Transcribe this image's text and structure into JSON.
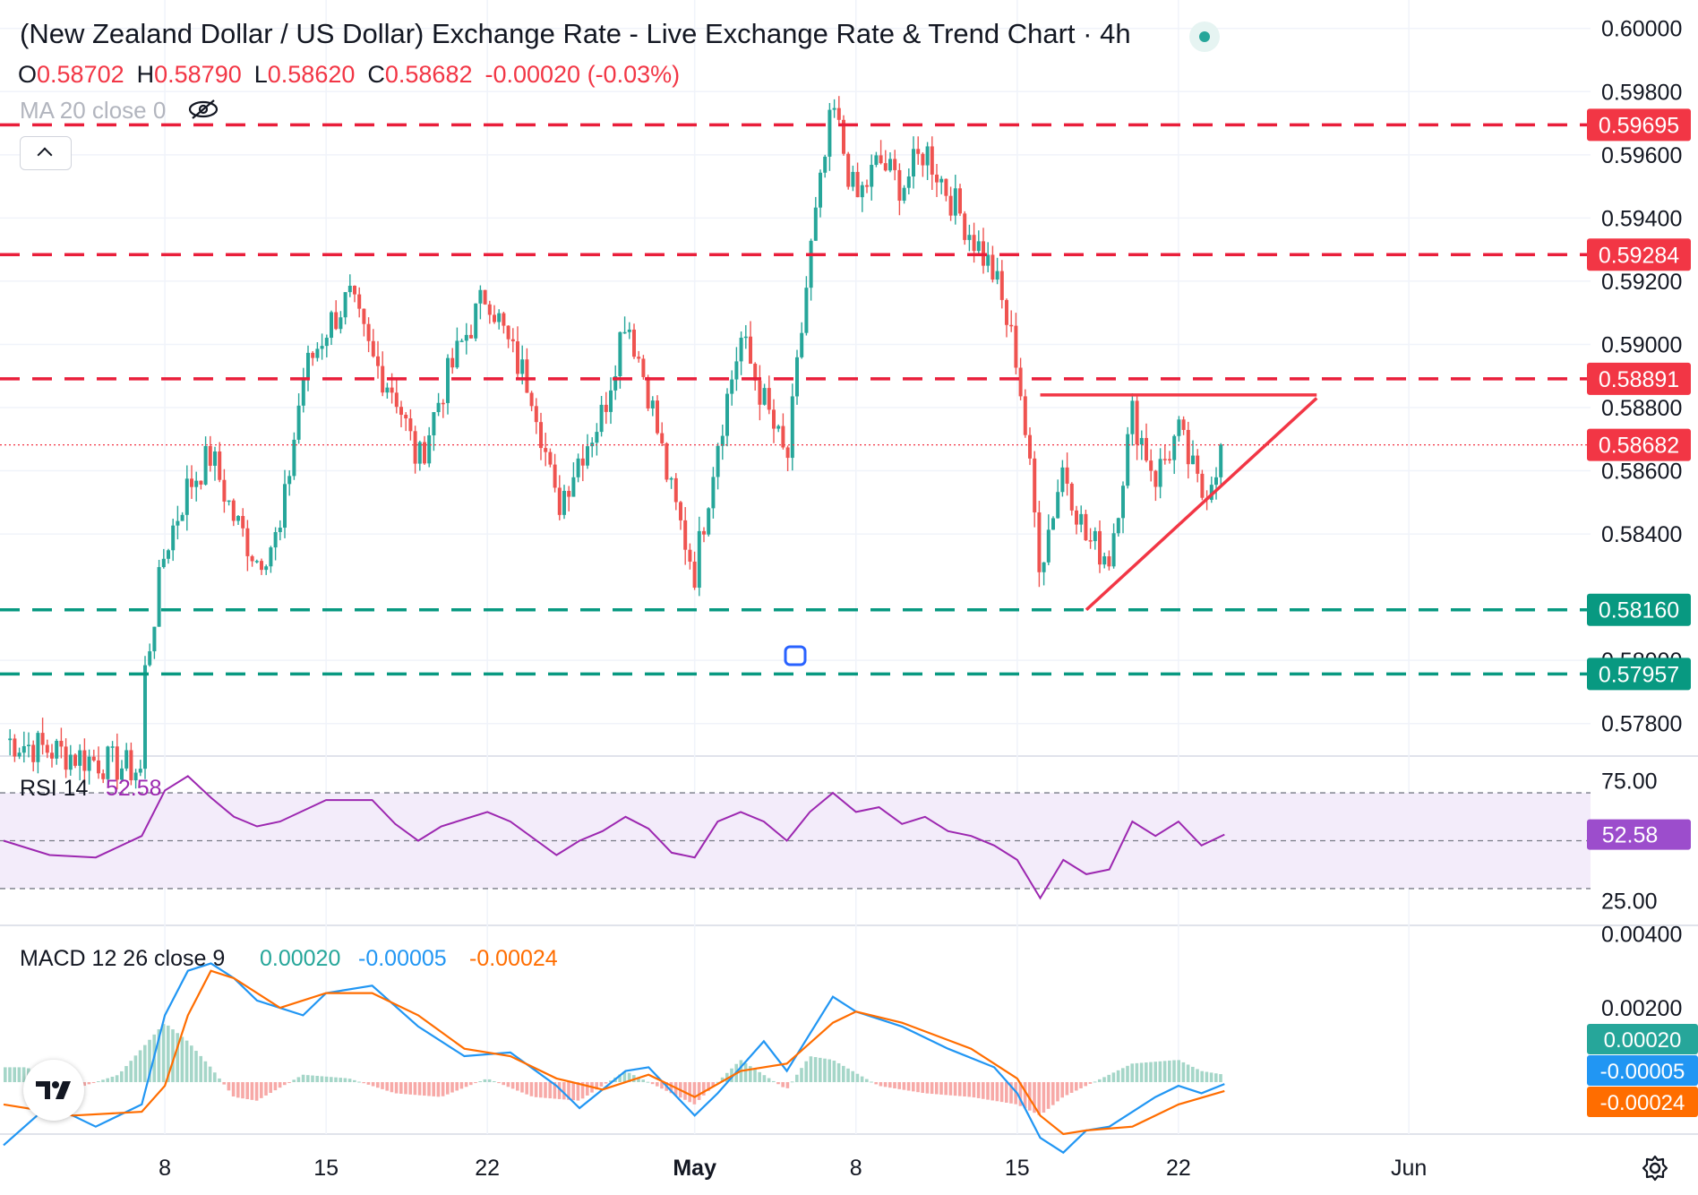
{
  "header": {
    "title": "(New Zealand Dollar / US Dollar) Exchange Rate - Live Exchange Rate & Trend Chart · 4h",
    "ohlc": {
      "o_label": "O",
      "o": "0.58702",
      "h_label": "H",
      "h": "0.58790",
      "l_label": "L",
      "l": "0.58620",
      "c_label": "C",
      "c": "0.58682",
      "change": "-0.00020 (-0.03%)"
    },
    "ma_label": "MA 20 close 0"
  },
  "colors": {
    "up": "#26a69a",
    "down": "#ef5350",
    "resistance": "#e91e3a",
    "support": "#089981",
    "current": "#f23645",
    "rsi": "#9c27b0",
    "rsi_band": "#f3ecfa",
    "macd": "#2196f3",
    "signal": "#ff6d00",
    "grid": "#f0f3fa",
    "text": "#131722"
  },
  "icons": {
    "eye": "eye-crossed-icon",
    "collapse": "chevron-up-icon",
    "logo": "tradingview-logo-icon",
    "settings": "gear-icon"
  },
  "chart_data": [
    {
      "type": "candlestick",
      "title": "(New Zealand Dollar / US Dollar) Exchange Rate - Live Exchange Rate & Trend Chart · 4h",
      "interval": "4h",
      "ylim": [
        0.577,
        0.6009
      ],
      "y_ticks": [
        "0.60000",
        "0.59800",
        "0.59600",
        "0.59400",
        "0.59200",
        "0.59000",
        "0.58800",
        "0.58600",
        "0.58400",
        "0.58000",
        "0.57800"
      ],
      "y_tick_values": [
        0.6,
        0.598,
        0.596,
        0.594,
        0.592,
        0.59,
        0.588,
        0.586,
        0.584,
        0.58,
        0.578
      ],
      "x_ticks": [
        "8",
        "15",
        "22",
        "May",
        "8",
        "15",
        "22",
        "Jun"
      ],
      "x_tick_dates": [
        "2023-04-08",
        "2023-04-15",
        "2023-04-22",
        "2023-05-01",
        "2023-05-08",
        "2023-05-15",
        "2023-05-22",
        "2023-06-01"
      ],
      "x_range": [
        "2023-04-01",
        "2023-06-05"
      ],
      "last": {
        "date": "2023-05-24",
        "open": 0.58702,
        "high": 0.5879,
        "low": 0.5862,
        "close": 0.58682
      },
      "horizontal_levels": [
        {
          "value": 0.59695,
          "label": "0.59695",
          "kind": "resistance"
        },
        {
          "value": 0.59284,
          "label": "0.59284",
          "kind": "resistance"
        },
        {
          "value": 0.58891,
          "label": "0.58891",
          "kind": "resistance"
        },
        {
          "value": 0.5816,
          "label": "0.58160",
          "kind": "support"
        },
        {
          "value": 0.57957,
          "label": "0.57957",
          "kind": "support"
        }
      ],
      "current_price": {
        "value": 0.58682,
        "label": "0.58682"
      },
      "triangle": {
        "top_line": [
          [
            "2023-05-16",
            0.5884
          ],
          [
            "2023-05-28",
            0.5884
          ]
        ],
        "bottom_line": [
          [
            "2023-05-18",
            0.5816
          ],
          [
            "2023-05-28",
            0.5883
          ]
        ]
      },
      "close_path": [
        [
          "2023-04-01",
          0.5775
        ],
        [
          "2023-04-07",
          0.5765
        ],
        [
          "2023-04-07",
          0.579
        ],
        [
          "2023-04-08",
          0.5835
        ],
        [
          "2023-04-09",
          0.5855
        ],
        [
          "2023-04-10",
          0.5865
        ],
        [
          "2023-04-11",
          0.5845
        ],
        [
          "2023-04-12",
          0.5832
        ],
        [
          "2023-04-13",
          0.584
        ],
        [
          "2023-04-14",
          0.589
        ],
        [
          "2023-04-15",
          0.5905
        ],
        [
          "2023-04-16",
          0.5915
        ],
        [
          "2023-04-17",
          0.5895
        ],
        [
          "2023-04-18",
          0.5885
        ],
        [
          "2023-04-19",
          0.5862
        ],
        [
          "2023-04-20",
          0.5885
        ],
        [
          "2023-04-21",
          0.5902
        ],
        [
          "2023-04-22",
          0.5917
        ],
        [
          "2023-04-23",
          0.5898
        ],
        [
          "2023-04-24",
          0.5885
        ],
        [
          "2023-04-25",
          0.5848
        ],
        [
          "2023-04-26",
          0.5865
        ],
        [
          "2023-04-27",
          0.5878
        ],
        [
          "2023-04-28",
          0.591
        ],
        [
          "2023-04-29",
          0.5885
        ],
        [
          "2023-04-30",
          0.5852
        ],
        [
          "2023-05-01",
          0.5828
        ],
        [
          "2023-05-02",
          0.587
        ],
        [
          "2023-05-03",
          0.5902
        ],
        [
          "2023-05-04",
          0.5882
        ],
        [
          "2023-05-05",
          0.5862
        ],
        [
          "2023-05-06",
          0.5928
        ],
        [
          "2023-05-07",
          0.5975
        ],
        [
          "2023-05-08",
          0.5945
        ],
        [
          "2023-05-09",
          0.5958
        ],
        [
          "2023-05-10",
          0.595
        ],
        [
          "2023-05-11",
          0.5962
        ],
        [
          "2023-05-12",
          0.5948
        ],
        [
          "2023-05-13",
          0.5935
        ],
        [
          "2023-05-14",
          0.5922
        ],
        [
          "2023-05-15",
          0.5895
        ],
        [
          "2023-05-16",
          0.583
        ],
        [
          "2023-05-17",
          0.5862
        ],
        [
          "2023-05-18",
          0.5838
        ],
        [
          "2023-05-19",
          0.5833
        ],
        [
          "2023-05-20",
          0.5878
        ],
        [
          "2023-05-21",
          0.5858
        ],
        [
          "2023-05-22",
          0.5872
        ],
        [
          "2023-05-23",
          0.5852
        ],
        [
          "2023-05-24",
          0.58682
        ]
      ]
    },
    {
      "type": "line",
      "title": "RSI",
      "label": "RSI 14",
      "value_label": "52.58",
      "ylim": [
        15,
        85
      ],
      "y_ticks": [
        "75.00",
        "25.00"
      ],
      "y_tick_values": [
        75,
        25
      ],
      "band": [
        30,
        70
      ],
      "series": [
        {
          "name": "RSI 14",
          "points": [
            [
              "2023-04-01",
              50
            ],
            [
              "2023-04-03",
              44
            ],
            [
              "2023-04-05",
              43
            ],
            [
              "2023-04-07",
              52
            ],
            [
              "2023-04-08",
              71
            ],
            [
              "2023-04-09",
              77
            ],
            [
              "2023-04-10",
              68
            ],
            [
              "2023-04-11",
              60
            ],
            [
              "2023-04-12",
              56
            ],
            [
              "2023-04-13",
              58
            ],
            [
              "2023-04-15",
              67
            ],
            [
              "2023-04-17",
              67
            ],
            [
              "2023-04-18",
              57
            ],
            [
              "2023-04-19",
              50
            ],
            [
              "2023-04-20",
              56
            ],
            [
              "2023-04-22",
              62
            ],
            [
              "2023-04-23",
              58
            ],
            [
              "2023-04-25",
              44
            ],
            [
              "2023-04-26",
              50
            ],
            [
              "2023-04-27",
              54
            ],
            [
              "2023-04-28",
              60
            ],
            [
              "2023-04-29",
              55
            ],
            [
              "2023-04-30",
              45
            ],
            [
              "2023-05-01",
              43
            ],
            [
              "2023-05-02",
              58
            ],
            [
              "2023-05-03",
              62
            ],
            [
              "2023-05-04",
              58
            ],
            [
              "2023-05-05",
              50
            ],
            [
              "2023-05-06",
              62
            ],
            [
              "2023-05-07",
              70
            ],
            [
              "2023-05-08",
              62
            ],
            [
              "2023-05-09",
              64
            ],
            [
              "2023-05-10",
              57
            ],
            [
              "2023-05-11",
              60
            ],
            [
              "2023-05-12",
              54
            ],
            [
              "2023-05-13",
              52
            ],
            [
              "2023-05-14",
              48
            ],
            [
              "2023-05-15",
              42
            ],
            [
              "2023-05-16",
              26
            ],
            [
              "2023-05-17",
              42
            ],
            [
              "2023-05-18",
              36
            ],
            [
              "2023-05-19",
              38
            ],
            [
              "2023-05-20",
              58
            ],
            [
              "2023-05-21",
              52
            ],
            [
              "2023-05-22",
              58
            ],
            [
              "2023-05-23",
              48
            ],
            [
              "2023-05-24",
              52.58
            ]
          ]
        }
      ]
    },
    {
      "type": "bar_line",
      "title": "MACD",
      "label": "MACD 12 26 close 9",
      "value_labels": [
        "0.00020",
        "-0.00005",
        "-0.00024"
      ],
      "ylim": [
        -0.0014,
        0.0042
      ],
      "y_ticks": [
        "0.00400",
        "0.00200"
      ],
      "y_tick_values": [
        0.004,
        0.002
      ],
      "series": [
        {
          "name": "MACD",
          "points": [
            [
              "2023-04-01",
              -0.0017
            ],
            [
              "2023-04-03",
              -0.0006
            ],
            [
              "2023-04-05",
              -0.0012
            ],
            [
              "2023-04-07",
              -0.0006
            ],
            [
              "2023-04-08",
              0.0018
            ],
            [
              "2023-04-09",
              0.003
            ],
            [
              "2023-04-10",
              0.0032
            ],
            [
              "2023-04-11",
              0.0028
            ],
            [
              "2023-04-12",
              0.0022
            ],
            [
              "2023-04-14",
              0.0018
            ],
            [
              "2023-04-15",
              0.0024
            ],
            [
              "2023-04-17",
              0.0026
            ],
            [
              "2023-04-19",
              0.0015
            ],
            [
              "2023-04-21",
              0.0007
            ],
            [
              "2023-04-23",
              0.0008
            ],
            [
              "2023-04-25",
              -0.0001
            ],
            [
              "2023-04-26",
              -0.0007
            ],
            [
              "2023-04-28",
              0.0003
            ],
            [
              "2023-04-29",
              0.0004
            ],
            [
              "2023-05-01",
              -0.0009
            ],
            [
              "2023-05-02",
              -0.0003
            ],
            [
              "2023-05-04",
              0.0011
            ],
            [
              "2023-05-05",
              0.0003
            ],
            [
              "2023-05-06",
              0.0013
            ],
            [
              "2023-05-07",
              0.0023
            ],
            [
              "2023-05-08",
              0.0019
            ],
            [
              "2023-05-10",
              0.0015
            ],
            [
              "2023-05-12",
              0.0009
            ],
            [
              "2023-05-14",
              0.0004
            ],
            [
              "2023-05-15",
              -0.0003
            ],
            [
              "2023-05-16",
              -0.0015
            ],
            [
              "2023-05-17",
              -0.0019
            ],
            [
              "2023-05-18",
              -0.0013
            ],
            [
              "2023-05-19",
              -0.0012
            ],
            [
              "2023-05-21",
              -0.0004
            ],
            [
              "2023-05-22",
              -0.0001
            ],
            [
              "2023-05-23",
              -0.0003
            ],
            [
              "2023-05-24",
              -5e-05
            ]
          ]
        },
        {
          "name": "Signal",
          "points": [
            [
              "2023-04-01",
              -0.0006
            ],
            [
              "2023-04-04",
              -0.0009
            ],
            [
              "2023-04-07",
              -0.0008
            ],
            [
              "2023-04-08",
              -0.0001
            ],
            [
              "2023-04-09",
              0.0018
            ],
            [
              "2023-04-10",
              0.003
            ],
            [
              "2023-04-11",
              0.0028
            ],
            [
              "2023-04-13",
              0.002
            ],
            [
              "2023-04-15",
              0.0024
            ],
            [
              "2023-04-17",
              0.0024
            ],
            [
              "2023-04-19",
              0.0018
            ],
            [
              "2023-04-21",
              0.0009
            ],
            [
              "2023-04-23",
              0.0007
            ],
            [
              "2023-04-25",
              0.0001
            ],
            [
              "2023-04-27",
              -0.0002
            ],
            [
              "2023-04-29",
              0.0002
            ],
            [
              "2023-05-01",
              -0.0004
            ],
            [
              "2023-05-03",
              0.0003
            ],
            [
              "2023-05-05",
              0.0005
            ],
            [
              "2023-05-07",
              0.0016
            ],
            [
              "2023-05-08",
              0.0019
            ],
            [
              "2023-05-10",
              0.0016
            ],
            [
              "2023-05-13",
              0.0009
            ],
            [
              "2023-05-15",
              0.0001
            ],
            [
              "2023-05-16",
              -0.0009
            ],
            [
              "2023-05-17",
              -0.0014
            ],
            [
              "2023-05-18",
              -0.0013
            ],
            [
              "2023-05-20",
              -0.0012
            ],
            [
              "2023-05-22",
              -0.0006
            ],
            [
              "2023-05-24",
              -0.00024
            ]
          ]
        }
      ],
      "histogram": [
        [
          "2023-04-02",
          0.0004
        ],
        [
          "2023-04-04",
          -0.0002
        ],
        [
          "2023-04-06",
          0.0002
        ],
        [
          "2023-04-08",
          0.0016
        ],
        [
          "2023-04-09",
          0.0011
        ],
        [
          "2023-04-10",
          0.0004
        ],
        [
          "2023-04-11",
          -0.0004
        ],
        [
          "2023-04-12",
          -0.0005
        ],
        [
          "2023-04-14",
          0.0002
        ],
        [
          "2023-04-16",
          0.0001
        ],
        [
          "2023-04-18",
          -0.0003
        ],
        [
          "2023-04-20",
          -0.0004
        ],
        [
          "2023-04-22",
          0.0001
        ],
        [
          "2023-04-24",
          -0.0004
        ],
        [
          "2023-04-26",
          -0.0005
        ],
        [
          "2023-04-28",
          0.0003
        ],
        [
          "2023-04-30",
          -0.0003
        ],
        [
          "2023-05-01",
          -0.0006
        ],
        [
          "2023-05-03",
          0.0006
        ],
        [
          "2023-05-05",
          -0.0002
        ],
        [
          "2023-05-06",
          0.0007
        ],
        [
          "2023-05-07",
          0.0006
        ],
        [
          "2023-05-09",
          -0.0001
        ],
        [
          "2023-05-11",
          -0.0003
        ],
        [
          "2023-05-13",
          -0.0004
        ],
        [
          "2023-05-15",
          -0.0006
        ],
        [
          "2023-05-16",
          -0.0009
        ],
        [
          "2023-05-17",
          -0.0004
        ],
        [
          "2023-05-19",
          0.0002
        ],
        [
          "2023-05-20",
          0.0005
        ],
        [
          "2023-05-22",
          0.0006
        ],
        [
          "2023-05-23",
          0.0003
        ],
        [
          "2023-05-24",
          0.0002
        ]
      ]
    }
  ]
}
